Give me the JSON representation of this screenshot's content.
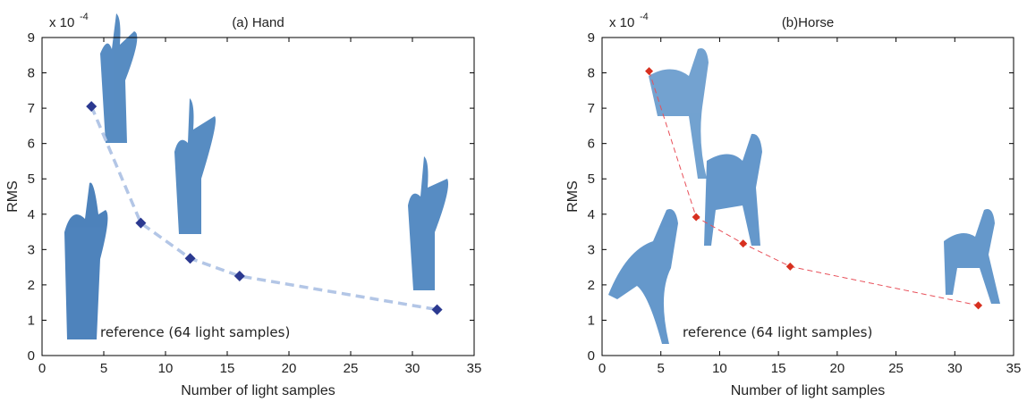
{
  "chart_data": [
    {
      "type": "line",
      "title": "(a) Hand",
      "xlabel": "Number of light samples",
      "ylabel": "RMS",
      "y_scale": {
        "base": "x 10",
        "exponent": "-4"
      },
      "annotation": "reference (64 light samples)",
      "x": [
        4,
        8,
        12,
        16,
        32
      ],
      "series": [
        {
          "color": "#2b3990",
          "line_color": "#b3c6e6",
          "values": [
            7.05,
            3.75,
            2.75,
            2.25,
            1.3
          ]
        }
      ],
      "xlim": [
        0,
        35
      ],
      "xticks": [
        0,
        5,
        10,
        15,
        20,
        25,
        30,
        35
      ],
      "ylim": [
        0,
        9
      ],
      "yticks": [
        0,
        1,
        2,
        3,
        4,
        5,
        6,
        7,
        8,
        9
      ]
    },
    {
      "type": "line",
      "title": "(b)Horse",
      "xlabel": "Number of light samples",
      "ylabel": "RMS",
      "y_scale": {
        "base": "x 10",
        "exponent": "-4"
      },
      "annotation": "reference (64 light samples)",
      "x": [
        4,
        8,
        12,
        16,
        32
      ],
      "series": [
        {
          "color": "#d7301f",
          "line_color": "#e8505a",
          "values": [
            8.05,
            3.92,
            3.17,
            2.52,
            1.42
          ]
        }
      ],
      "xlim": [
        0,
        35
      ],
      "xticks": [
        0,
        5,
        10,
        15,
        20,
        25,
        30,
        35
      ],
      "ylim": [
        0,
        9
      ],
      "yticks": [
        0,
        1,
        2,
        3,
        4,
        5,
        6,
        7,
        8,
        9
      ]
    }
  ]
}
